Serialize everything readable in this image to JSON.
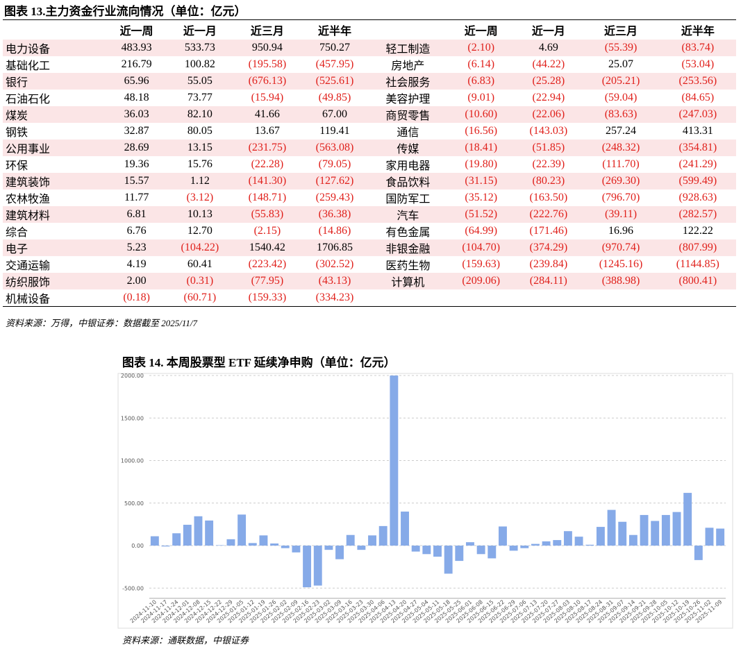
{
  "table13": {
    "title": "图表 13.主力资金行业流向情况（单位：亿元）",
    "header": [
      "",
      "近一周",
      "近一月",
      "近三月",
      "近半年",
      "",
      "近一周",
      "近一月",
      "近三月",
      "近半年"
    ],
    "rows": [
      [
        "电力设备",
        "483.93",
        "533.73",
        "950.94",
        "750.27",
        "轻工制造",
        "(2.10)",
        "4.69",
        "(55.39)",
        "(83.74)"
      ],
      [
        "基础化工",
        "216.79",
        "100.82",
        "(195.58)",
        "(457.95)",
        "房地产",
        "(6.14)",
        "(44.22)",
        "25.07",
        "(53.04)"
      ],
      [
        "银行",
        "65.96",
        "55.05",
        "(676.13)",
        "(525.61)",
        "社会服务",
        "(6.83)",
        "(25.28)",
        "(205.21)",
        "(253.56)"
      ],
      [
        "石油石化",
        "48.18",
        "73.77",
        "(15.94)",
        "(49.85)",
        "美容护理",
        "(9.01)",
        "(22.94)",
        "(59.04)",
        "(84.65)"
      ],
      [
        "煤炭",
        "36.03",
        "82.10",
        "41.66",
        "67.00",
        "商贸零售",
        "(10.60)",
        "(22.06)",
        "(83.63)",
        "(247.03)"
      ],
      [
        "钢铁",
        "32.87",
        "80.05",
        "13.67",
        "119.41",
        "通信",
        "(16.56)",
        "(143.03)",
        "257.24",
        "413.31"
      ],
      [
        "公用事业",
        "28.69",
        "13.15",
        "(231.75)",
        "(563.08)",
        "传媒",
        "(18.41)",
        "(51.85)",
        "(248.32)",
        "(354.81)"
      ],
      [
        "环保",
        "19.36",
        "15.76",
        "(22.28)",
        "(79.05)",
        "家用电器",
        "(19.80)",
        "(22.39)",
        "(111.70)",
        "(241.29)"
      ],
      [
        "建筑装饰",
        "15.57",
        "1.12",
        "(141.30)",
        "(127.62)",
        "食品饮料",
        "(31.15)",
        "(80.23)",
        "(269.30)",
        "(599.49)"
      ],
      [
        "农林牧渔",
        "11.77",
        "(3.12)",
        "(148.71)",
        "(259.43)",
        "国防军工",
        "(35.12)",
        "(163.50)",
        "(796.70)",
        "(928.63)"
      ],
      [
        "建筑材料",
        "6.81",
        "10.13",
        "(55.83)",
        "(36.38)",
        "汽车",
        "(51.52)",
        "(222.76)",
        "(39.11)",
        "(282.57)"
      ],
      [
        "综合",
        "6.76",
        "12.70",
        "(2.15)",
        "(14.86)",
        "有色金属",
        "(64.99)",
        "(171.46)",
        "16.96",
        "122.22"
      ],
      [
        "电子",
        "5.23",
        "(104.22)",
        "1540.42",
        "1706.85",
        "非银金融",
        "(104.70)",
        "(374.29)",
        "(970.74)",
        "(807.99)"
      ],
      [
        "交通运输",
        "4.19",
        "60.41",
        "(223.42)",
        "(302.52)",
        "医药生物",
        "(159.63)",
        "(239.84)",
        "(1245.16)",
        "(1144.85)"
      ],
      [
        "纺织服饰",
        "2.00",
        "(0.31)",
        "(77.95)",
        "(43.13)",
        "计算机",
        "(209.06)",
        "(284.11)",
        "(388.98)",
        "(800.41)"
      ],
      [
        "机械设备",
        "(0.18)",
        "(60.71)",
        "(159.33)",
        "(334.23)"
      ]
    ],
    "source": "资料来源：万得，中银证券：数据截至 2025/11/7"
  },
  "chart_data": {
    "type": "bar",
    "title": "图表 14. 本周股票型 ETF 延续净申购（单位：亿元）",
    "categories": [
      "2024-11-10",
      "2024-11-17",
      "2024-11-24",
      "2024-12-01",
      "2024-12-08",
      "2024-12-15",
      "2024-12-22",
      "2024-12-29",
      "2025-01-05",
      "2025-01-12",
      "2025-01-19",
      "2025-01-26",
      "2025-02-02",
      "2025-02-09",
      "2025-02-16",
      "2025-02-23",
      "2025-03-02",
      "2025-03-09",
      "2025-03-16",
      "2025-03-23",
      "2025-03-30",
      "2025-04-06",
      "2025-04-13",
      "2025-04-20",
      "2025-04-27",
      "2025-05-04",
      "2025-05-11",
      "2025-05-18",
      "2025-05-25",
      "2025-06-01",
      "2025-06-08",
      "2025-06-15",
      "2025-06-22",
      "2025-06-29",
      "2025-07-06",
      "2025-07-13",
      "2025-07-20",
      "2025-07-27",
      "2025-08-03",
      "2025-08-10",
      "2025-08-17",
      "2025-08-24",
      "2025-08-31",
      "2025-09-07",
      "2025-09-14",
      "2025-09-21",
      "2025-09-28",
      "2025-10-05",
      "2025-10-12",
      "2025-10-19",
      "2025-10-26",
      "2025-11-02",
      "2025-11-09"
    ],
    "values": [
      110,
      -10,
      145,
      245,
      345,
      295,
      5,
      75,
      365,
      30,
      120,
      25,
      -30,
      -80,
      -490,
      -470,
      -50,
      -160,
      125,
      -50,
      120,
      230,
      2000,
      400,
      -70,
      -100,
      -130,
      -330,
      -180,
      40,
      -100,
      -150,
      225,
      -60,
      -30,
      20,
      50,
      65,
      170,
      105,
      10,
      220,
      420,
      280,
      125,
      360,
      290,
      360,
      395,
      620,
      -170,
      210,
      200
    ],
    "color": "#86aae8",
    "ylim": [
      -620,
      2000
    ],
    "yticks": [
      {
        "value": -500,
        "label": "-500.00"
      },
      {
        "value": 0,
        "label": "0.00"
      },
      {
        "value": 500,
        "label": "500.00"
      },
      {
        "value": 1000,
        "label": "1000.00"
      },
      {
        "value": 1500,
        "label": "1500.00"
      },
      {
        "value": 2000,
        "label": "2000.00"
      }
    ],
    "grid": true,
    "source": "资料来源：通联数据，中银证券"
  }
}
